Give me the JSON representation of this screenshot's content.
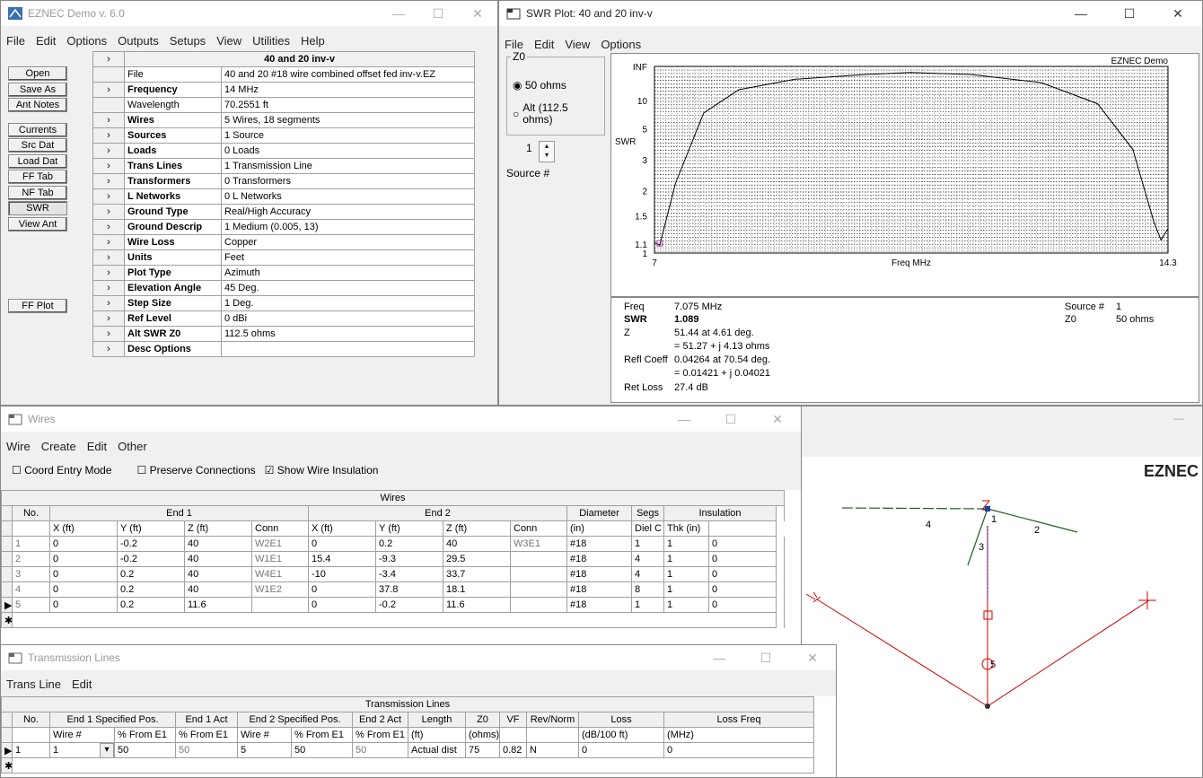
{
  "eznec": {
    "title": "EZNEC Demo  v. 6.0",
    "menu": [
      "File",
      "Edit",
      "Options",
      "Outputs",
      "Setups",
      "View",
      "Utilities",
      "Help"
    ],
    "antenna_name": "40 and 20 inv-v",
    "buttons": [
      "Open",
      "Save As",
      "Ant Notes",
      "Currents",
      "Src Dat",
      "Load Dat",
      "FF Tab",
      "NF Tab",
      "SWR",
      "View Ant",
      "FF Plot"
    ],
    "params": [
      {
        "name": "File",
        "value": "40 and 20 #18 wire combined offset fed inv-v.EZ",
        "bold": false,
        "arrow": false
      },
      {
        "name": "Frequency",
        "value": "14 MHz",
        "bold": true,
        "arrow": true
      },
      {
        "name": "Wavelength",
        "value": "70.2551 ft",
        "bold": false,
        "arrow": false
      },
      {
        "name": "Wires",
        "value": "5 Wires, 18 segments",
        "bold": true,
        "arrow": true
      },
      {
        "name": "Sources",
        "value": "1 Source",
        "bold": true,
        "arrow": true
      },
      {
        "name": "Loads",
        "value": "0 Loads",
        "bold": true,
        "arrow": true
      },
      {
        "name": "Trans Lines",
        "value": "1 Transmission Line",
        "bold": true,
        "arrow": true
      },
      {
        "name": "Transformers",
        "value": "0 Transformers",
        "bold": true,
        "arrow": true
      },
      {
        "name": "L Networks",
        "value": "0 L Networks",
        "bold": true,
        "arrow": true
      },
      {
        "name": "Ground Type",
        "value": "Real/High Accuracy",
        "bold": true,
        "arrow": true
      },
      {
        "name": "Ground Descrip",
        "value": "1 Medium (0.005, 13)",
        "bold": true,
        "arrow": true
      },
      {
        "name": "Wire Loss",
        "value": "Copper",
        "bold": true,
        "arrow": true
      },
      {
        "name": "Units",
        "value": "Feet",
        "bold": true,
        "arrow": true
      },
      {
        "name": "Plot Type",
        "value": "Azimuth",
        "bold": true,
        "arrow": true
      },
      {
        "name": "Elevation Angle",
        "value": "45 Deg.",
        "bold": true,
        "arrow": true
      },
      {
        "name": "Step Size",
        "value": "1 Deg.",
        "bold": true,
        "arrow": true
      },
      {
        "name": "Ref Level",
        "value": "0 dBi",
        "bold": true,
        "arrow": true
      },
      {
        "name": "Alt SWR Z0",
        "value": "112.5 ohms",
        "bold": true,
        "arrow": true
      },
      {
        "name": "Desc Options",
        "value": "",
        "bold": true,
        "arrow": true
      }
    ]
  },
  "swr": {
    "title": "SWR Plot: 40 and 20 inv-v",
    "menu": [
      "File",
      "Edit",
      "View",
      "Options"
    ],
    "z0_group": "Z0",
    "opt1": "50 ohms",
    "opt2": "Alt (112.5 ohms)",
    "source_value": "1",
    "source_label": "Source #",
    "brand": "EZNEC Demo",
    "xlabel": "Freq MHz",
    "ylabel": "SWR",
    "readout": {
      "freq_label": "Freq",
      "freq_value": "7.075 MHz",
      "swr_label": "SWR",
      "swr_value": "1.089",
      "z_label": "Z",
      "z_value1": "51.44 at 4.61 deg.",
      "z_value2": "= 51.27 + j 4.13 ohms",
      "refl_label": "Refl Coeff",
      "refl_value1": "0.04264 at 70.54 deg.",
      "refl_value2": "= 0.01421 + j 0.04021",
      "ret_label": "Ret Loss",
      "ret_value": "27.4 dB",
      "src_label": "Source #",
      "src_value": "1",
      "z0_label": "Z0",
      "z0_value": "50 ohms"
    }
  },
  "chart_data": {
    "type": "line",
    "title": "",
    "xlabel": "Freq MHz",
    "ylabel": "SWR",
    "xlim": [
      7,
      14.3
    ],
    "x_ticks": [
      "7",
      "14.3"
    ],
    "y_ticks": [
      "INF",
      "10",
      "5",
      "3",
      "2",
      "1.5",
      "1.1",
      "1"
    ],
    "series": [
      {
        "x": [
          7.0,
          7.075,
          7.3,
          7.7,
          8.2,
          9.0,
          10.0,
          10.65,
          11.5,
          12.5,
          13.3,
          13.8,
          14.1,
          14.2,
          14.3
        ],
        "y": [
          1.12,
          1.089,
          2.2,
          7,
          15,
          28,
          45,
          60,
          45,
          22,
          9,
          3.5,
          1.4,
          1.15,
          1.3
        ]
      }
    ]
  },
  "wires": {
    "title": "Wires",
    "menu": [
      "Wire",
      "Create",
      "Edit",
      "Other"
    ],
    "opt_coord": "Coord Entry Mode",
    "opt_preserve": "Preserve Connections",
    "opt_insul": "Show Wire Insulation",
    "table_title": "Wires",
    "group_headers": [
      "No.",
      "End 1",
      "End 2",
      "Diameter",
      "Segs",
      "Insulation"
    ],
    "sub_headers": [
      "X  (ft)",
      "Y  (ft)",
      "Z  (ft)",
      "Conn",
      "X  (ft)",
      "Y  (ft)",
      "Z  (ft)",
      "Conn",
      "(in)",
      "Diel C",
      "Thk (in)"
    ],
    "rows": [
      [
        "1",
        "0",
        "-0.2",
        "40",
        "W2E1",
        "0",
        "0.2",
        "40",
        "W3E1",
        "#18",
        "1",
        "1",
        "0"
      ],
      [
        "2",
        "0",
        "-0.2",
        "40",
        "W1E1",
        "15.4",
        "-9.3",
        "29.5",
        "",
        "#18",
        "4",
        "1",
        "0"
      ],
      [
        "3",
        "0",
        "0.2",
        "40",
        "W4E1",
        "-10",
        "-3.4",
        "33.7",
        "",
        "#18",
        "4",
        "1",
        "0"
      ],
      [
        "4",
        "0",
        "0.2",
        "40",
        "W1E2",
        "0",
        "37.8",
        "18.1",
        "",
        "#18",
        "8",
        "1",
        "0"
      ],
      [
        "5",
        "0",
        "0.2",
        "11.6",
        "",
        "0",
        "-0.2",
        "11.6",
        "",
        "#18",
        "1",
        "1",
        "0"
      ]
    ]
  },
  "tlines": {
    "title": "Transmission Lines",
    "menu": [
      "Trans Line",
      "Edit"
    ],
    "table_title": "Transmission Lines",
    "group_headers": [
      "No.",
      "End 1 Specified Pos.",
      "End 1 Act",
      "End 2 Specified Pos.",
      "End 2 Act",
      "Length",
      "Z0",
      "VF",
      "Rev/Norm",
      "Loss",
      "Loss Freq"
    ],
    "sub_headers": [
      "Wire #",
      "% From E1",
      "% From E1",
      "Wire #",
      "% From E1",
      "% From E1",
      "(ft)",
      "(ohms)",
      "",
      "",
      "(dB/100 ft)",
      "(MHz)"
    ],
    "row": [
      "1",
      "1",
      "50",
      "50",
      "5",
      "50",
      "50",
      "Actual dist",
      "75",
      "0.82",
      "N",
      "0",
      "0"
    ]
  },
  "antview": {
    "brand": "EZNEC",
    "axis_z": "Z",
    "wire_labels": [
      "1",
      "2",
      "3",
      "4",
      "5"
    ]
  }
}
